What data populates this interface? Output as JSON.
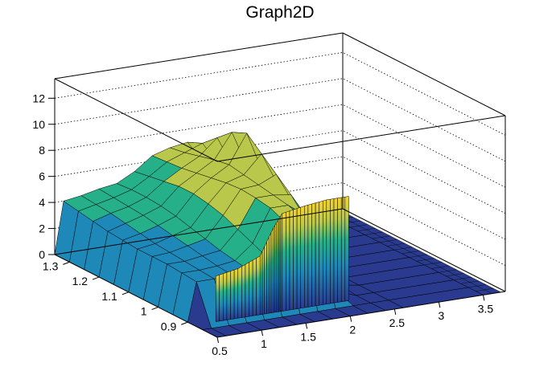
{
  "chart_data": {
    "type": "surface3d",
    "title": "Graph2D",
    "xlabel": "",
    "ylabel": "",
    "zlabel": "",
    "xlim": [
      0.5,
      3.75
    ],
    "ylim": [
      0.8,
      1.35
    ],
    "zlim": [
      0,
      13.5
    ],
    "grid": true,
    "x_ticks": [
      "0.5",
      "1",
      "1.5",
      "2",
      "2.5",
      "3",
      "3.5"
    ],
    "y_ticks": [
      "0.9",
      "1",
      "1.1",
      "1.2",
      "1.3"
    ],
    "z_ticks": [
      "0",
      "2",
      "4",
      "6",
      "8",
      "10",
      "12"
    ],
    "x_tick_values": [
      0.5,
      1,
      1.5,
      2,
      2.5,
      3,
      3.5
    ],
    "y_tick_values": [
      0.9,
      1,
      1.1,
      1.2,
      1.3
    ],
    "z_tick_values": [
      0,
      2,
      4,
      6,
      8,
      10,
      12
    ],
    "surface_cross_sections": [
      {
        "x": 0.5,
        "z": [
          0.0,
          0.0,
          0.0,
          0.0,
          0.0,
          0.0,
          0.0,
          0.0,
          0.0,
          0.0,
          0.0,
          0.0
        ]
      },
      {
        "x": 0.6,
        "z": [
          0.0,
          0.0,
          3.0,
          3.1,
          3.2,
          3.2,
          3.2,
          3.3,
          3.4,
          3.6,
          3.8,
          4.0
        ]
      },
      {
        "x": 0.8,
        "z": [
          0.0,
          0.0,
          3.0,
          3.1,
          3.2,
          3.3,
          3.4,
          3.6,
          3.8,
          4.0,
          4.1,
          4.2
        ]
      },
      {
        "x": 1.0,
        "z": [
          0.0,
          0.0,
          3.1,
          3.2,
          3.4,
          3.6,
          3.8,
          4.0,
          4.2,
          4.3,
          4.4,
          4.5
        ]
      },
      {
        "x": 1.2,
        "z": [
          0.0,
          0.0,
          3.2,
          3.4,
          3.6,
          3.9,
          4.2,
          4.5,
          4.7,
          4.8,
          4.8,
          4.7
        ]
      },
      {
        "x": 1.4,
        "z": [
          0.0,
          0.0,
          4.0,
          4.5,
          5.0,
          5.5,
          5.8,
          6.0,
          6.0,
          5.8,
          5.6,
          5.4
        ]
      },
      {
        "x": 1.6,
        "z": [
          0.0,
          0.0,
          6.5,
          7.0,
          7.2,
          7.3,
          7.2,
          7.0,
          6.8,
          6.6,
          6.5,
          6.4
        ]
      },
      {
        "x": 1.8,
        "z": [
          0.0,
          0.0,
          6.6,
          7.0,
          7.2,
          7.4,
          7.6,
          7.8,
          7.6,
          7.3,
          7.0,
          6.8
        ]
      },
      {
        "x": 2.0,
        "z": [
          0.0,
          0.0,
          5.0,
          6.0,
          7.0,
          8.0,
          9.0,
          10.0,
          9.5,
          8.5,
          7.5,
          7.0
        ]
      },
      {
        "x": 2.2,
        "z": [
          0.0,
          0.0,
          0.5,
          3.0,
          4.5,
          5.5,
          6.2,
          6.5,
          6.2,
          5.8,
          5.5,
          5.0
        ]
      },
      {
        "x": 2.4,
        "z": [
          0.0,
          0.0,
          0.0,
          0.2,
          0.5,
          1.0,
          1.5,
          2.0,
          2.5,
          2.8,
          3.0,
          2.8
        ]
      },
      {
        "x": 2.6,
        "z": [
          0.0,
          0.0,
          0.0,
          0.0,
          0.0,
          0.0,
          0.0,
          0.0,
          0.0,
          0.0,
          0.0,
          0.0
        ]
      },
      {
        "x": 3.5,
        "z": [
          0.0,
          0.0,
          0.0,
          0.0,
          0.0,
          0.0,
          0.0,
          0.0,
          0.0,
          0.0,
          0.0,
          0.0
        ]
      }
    ],
    "surface_y_values": [
      0.8,
      0.85,
      0.9,
      0.95,
      1.0,
      1.05,
      1.1,
      1.15,
      1.2,
      1.25,
      1.3,
      1.35
    ],
    "front_wall_heights": [
      {
        "x": 0.75,
        "z": 3.5
      },
      {
        "x": 1.0,
        "z": 3.8
      },
      {
        "x": 1.25,
        "z": 4.5
      },
      {
        "x": 1.4,
        "z": 6.5
      },
      {
        "x": 1.5,
        "z": 7.5
      },
      {
        "x": 1.75,
        "z": 7.8
      },
      {
        "x": 2.0,
        "z": 8.0
      },
      {
        "x": 2.25,
        "z": 8.0
      }
    ],
    "colors": {
      "low": "#2a3b8f",
      "mid_low": "#1e88b8",
      "mid": "#25b08a",
      "mid_high": "#b9c84a",
      "high": "#f5d32c"
    }
  }
}
